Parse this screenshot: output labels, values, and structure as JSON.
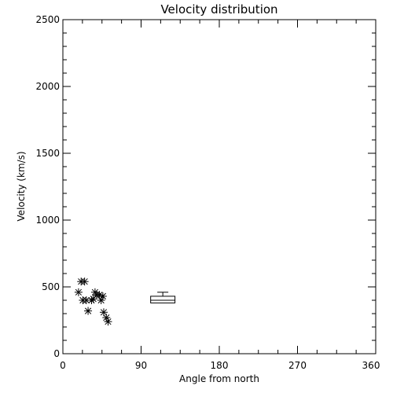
{
  "chart_data": {
    "type": "scatter",
    "title": "Velocity distribution",
    "xlabel": "Angle from north",
    "ylabel": "Velocity (km/s)",
    "xlim": [
      0,
      360
    ],
    "ylim": [
      0,
      2500
    ],
    "x_ticks": [
      0,
      90,
      180,
      270,
      360
    ],
    "y_ticks": [
      0,
      500,
      1000,
      1500,
      2000,
      2500
    ],
    "grid": false,
    "marker": "asterisk",
    "points": [
      {
        "x": 18,
        "y": 460
      },
      {
        "x": 21,
        "y": 540
      },
      {
        "x": 25,
        "y": 540
      },
      {
        "x": 23,
        "y": 400
      },
      {
        "x": 27,
        "y": 400
      },
      {
        "x": 29,
        "y": 320
      },
      {
        "x": 33,
        "y": 400
      },
      {
        "x": 35,
        "y": 410
      },
      {
        "x": 37,
        "y": 460
      },
      {
        "x": 39,
        "y": 440
      },
      {
        "x": 42,
        "y": 440
      },
      {
        "x": 44,
        "y": 400
      },
      {
        "x": 46,
        "y": 430
      },
      {
        "x": 47,
        "y": 310
      },
      {
        "x": 50,
        "y": 270
      },
      {
        "x": 52,
        "y": 240
      }
    ],
    "boxplot": {
      "x_low": 101,
      "x_high": 129,
      "median": 400,
      "q1": 380,
      "q3": 430,
      "whisker_high": 460
    }
  }
}
